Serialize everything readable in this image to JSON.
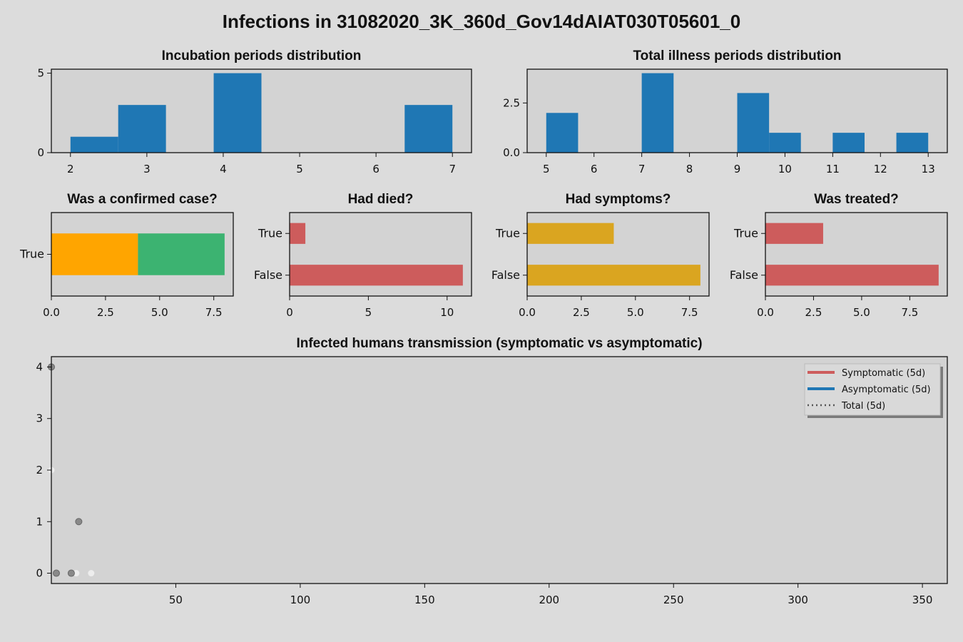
{
  "figure": {
    "suptitle": "Infections in 31082020_3K_360d_Gov14dAIAT030T05601_0",
    "background": "#dcdcdc",
    "axes_background": "#d3d3d3"
  },
  "chart_data": [
    {
      "id": "incubation",
      "type": "bar",
      "title": "Incubation periods distribution",
      "xlim": [
        1.75,
        7.25
      ],
      "ylim": [
        0,
        5.25
      ],
      "xticks": [
        2,
        3,
        4,
        5,
        6,
        7
      ],
      "yticks": [
        0,
        5
      ],
      "bins": [
        {
          "x0": 2.0,
          "x1": 2.625,
          "count": 1
        },
        {
          "x0": 2.625,
          "x1": 3.25,
          "count": 3
        },
        {
          "x0": 3.875,
          "x1": 4.5,
          "count": 5
        },
        {
          "x0": 6.375,
          "x1": 7.0,
          "count": 3
        }
      ],
      "color": "#1f77b4"
    },
    {
      "id": "illness",
      "type": "bar",
      "title": "Total illness periods distribution",
      "xlim": [
        4.6,
        13.4
      ],
      "ylim": [
        0,
        4.2
      ],
      "xticks": [
        5,
        6,
        7,
        8,
        9,
        10,
        11,
        12,
        13
      ],
      "yticks": [
        0.0,
        2.5
      ],
      "bins": [
        {
          "x0": 5.0,
          "x1": 5.667,
          "count": 2
        },
        {
          "x0": 7.0,
          "x1": 7.667,
          "count": 4
        },
        {
          "x0": 9.0,
          "x1": 9.667,
          "count": 3
        },
        {
          "x0": 9.667,
          "x1": 10.333,
          "count": 1
        },
        {
          "x0": 11.0,
          "x1": 11.667,
          "count": 1
        },
        {
          "x0": 12.333,
          "x1": 13.0,
          "count": 1
        }
      ],
      "color": "#1f77b4"
    },
    {
      "id": "confirmed",
      "type": "bar",
      "orientation": "horizontal",
      "stacked": true,
      "title": "Was a confirmed case?",
      "categories": [
        "True"
      ],
      "series": [
        {
          "values": [
            4
          ],
          "color": "#ffa500"
        },
        {
          "values": [
            4
          ],
          "color": "#3cb371"
        }
      ],
      "xlim": [
        0,
        8.4
      ],
      "xticks": [
        0.0,
        2.5,
        5.0,
        7.5
      ]
    },
    {
      "id": "died",
      "type": "bar",
      "orientation": "horizontal",
      "title": "Had died?",
      "categories": [
        "True",
        "False"
      ],
      "values": [
        1,
        11
      ],
      "color": "#cd5c5c",
      "xlim": [
        0,
        11.55
      ],
      "xticks": [
        0,
        5,
        10
      ]
    },
    {
      "id": "symptoms",
      "type": "bar",
      "orientation": "horizontal",
      "title": "Had symptoms?",
      "categories": [
        "True",
        "False"
      ],
      "values": [
        4,
        8
      ],
      "color": "#daa520",
      "xlim": [
        0,
        8.4
      ],
      "xticks": [
        0.0,
        2.5,
        5.0,
        7.5
      ]
    },
    {
      "id": "treated",
      "type": "bar",
      "orientation": "horizontal",
      "title": "Was treated?",
      "categories": [
        "True",
        "False"
      ],
      "values": [
        3,
        9
      ],
      "color": "#cd5c5c",
      "xlim": [
        0,
        9.45
      ],
      "xticks": [
        0.0,
        2.5,
        5.0,
        7.5
      ]
    },
    {
      "id": "transmission",
      "type": "scatter",
      "title": "Infected humans transmission (symptomatic vs asymptomatic)",
      "xlim": [
        0,
        360
      ],
      "ylim": [
        -0.2,
        4.2
      ],
      "xticks": [
        50,
        100,
        150,
        200,
        250,
        300,
        350
      ],
      "yticks": [
        0,
        1,
        2,
        3,
        4
      ],
      "series": [
        {
          "name": "Symptomatic (5d)",
          "color": "#cd5c5c",
          "style": "solid",
          "x": [],
          "y": []
        },
        {
          "name": "Asymptomatic (5d)",
          "color": "#1f77b4",
          "style": "solid",
          "x": [],
          "y": []
        },
        {
          "name": "Total (5d)",
          "color": "#555555",
          "style": "dotted",
          "x": [],
          "y": []
        }
      ],
      "points_dark": {
        "color": "#777777",
        "x": [
          0,
          2,
          8,
          11
        ],
        "y": [
          4,
          0,
          0,
          1
        ]
      },
      "points_light": {
        "color": "#f0f0f0",
        "x": [
          0,
          10,
          16
        ],
        "y": [
          2,
          0,
          0
        ]
      },
      "legend_position": "upper right"
    }
  ]
}
